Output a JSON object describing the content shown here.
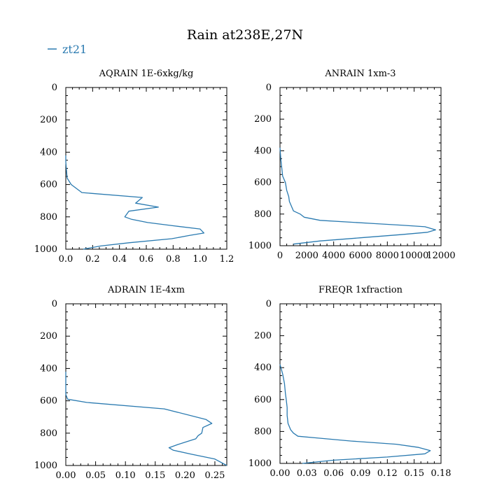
{
  "title": "Rain at238E,27N",
  "legend": {
    "label": "zt21",
    "color": "#2a7ab0"
  },
  "line_color": "#2a7ab0",
  "chart_data": [
    {
      "type": "line",
      "title": "AQRAIN  1E-6xkg/kg",
      "xlim": [
        0,
        1.2
      ],
      "ylim": [
        1000,
        0
      ],
      "xticks": [
        "0.0",
        "0.2",
        "0.4",
        "0.6",
        "0.8",
        "1.0",
        "1.2"
      ],
      "xtick_values": [
        0,
        0.2,
        0.4,
        0.6,
        0.8,
        1.0,
        1.2
      ],
      "yticks": [
        "0",
        "200",
        "400",
        "600",
        "800",
        "1000"
      ],
      "ytick_values": [
        0,
        200,
        400,
        600,
        800,
        1000
      ],
      "series": [
        {
          "name": "zt21",
          "x": [
            0,
            0,
            0.01,
            0.04,
            0.12,
            0.57,
            0.52,
            0.69,
            0.47,
            0.44,
            0.49,
            0.61,
            0.8,
            1.0,
            1.03,
            0.92,
            0.79,
            0.47,
            0.26,
            0.13
          ],
          "y": [
            420,
            460,
            560,
            600,
            650,
            680,
            715,
            740,
            765,
            800,
            815,
            835,
            855,
            875,
            900,
            915,
            935,
            960,
            980,
            1000
          ]
        }
      ]
    },
    {
      "type": "line",
      "title": "ANRAIN  1xm-3",
      "xlim": [
        0,
        12000
      ],
      "ylim": [
        1000,
        0
      ],
      "xticks": [
        "0",
        "2000",
        "4000",
        "6000",
        "8000",
        "10000",
        "12000"
      ],
      "xtick_values": [
        0,
        2000,
        4000,
        6000,
        8000,
        10000,
        12000
      ],
      "yticks": [
        "0",
        "200",
        "400",
        "600",
        "800",
        "1000"
      ],
      "ytick_values": [
        0,
        200,
        400,
        600,
        800,
        1000
      ],
      "series": [
        {
          "name": "zt21",
          "x": [
            0,
            60,
            200,
            400,
            500,
            650,
            700,
            1000,
            1500,
            1800,
            3000,
            7000,
            9000,
            10800,
            11600,
            11000,
            9000,
            6000,
            3000,
            1000
          ],
          "y": [
            380,
            450,
            560,
            600,
            650,
            690,
            720,
            780,
            800,
            820,
            840,
            860,
            870,
            880,
            900,
            915,
            930,
            950,
            970,
            990
          ]
        }
      ]
    },
    {
      "type": "line",
      "title": "ADRAIN  1E-4xm",
      "xlim": [
        0,
        0.27
      ],
      "ylim": [
        1000,
        0
      ],
      "xticks": [
        "0.00",
        "0.05",
        "0.10",
        "0.15",
        "0.20",
        "0.25"
      ],
      "xtick_values": [
        0,
        0.05,
        0.1,
        0.15,
        0.2,
        0.25
      ],
      "yticks": [
        "0",
        "200",
        "400",
        "600",
        "800",
        "1000"
      ],
      "ytick_values": [
        0,
        200,
        400,
        600,
        800,
        1000
      ],
      "series": [
        {
          "name": "zt21",
          "x": [
            0,
            0,
            0.0,
            0.003,
            0.035,
            0.165,
            0.235,
            0.245,
            0.23,
            0.228,
            0.222,
            0.218,
            0.205,
            0.188,
            0.173,
            0.18,
            0.21,
            0.25,
            0.275
          ],
          "y": [
            420,
            470,
            560,
            590,
            610,
            650,
            715,
            740,
            765,
            800,
            815,
            835,
            850,
            870,
            890,
            905,
            930,
            960,
            1000
          ]
        }
      ]
    },
    {
      "type": "line",
      "title": "FREQR  1xfraction",
      "xlim": [
        0,
        0.18
      ],
      "ylim": [
        1000,
        0
      ],
      "xticks": [
        "0.00",
        "0.03",
        "0.06",
        "0.09",
        "0.12",
        "0.15",
        "0.18"
      ],
      "xtick_values": [
        0,
        0.03,
        0.06,
        0.09,
        0.12,
        0.15,
        0.18
      ],
      "yticks": [
        "0",
        "200",
        "400",
        "600",
        "800",
        "1000"
      ],
      "ytick_values": [
        0,
        200,
        400,
        600,
        800,
        1000
      ],
      "series": [
        {
          "name": "zt21",
          "x": [
            0,
            0.003,
            0.005,
            0.006,
            0.007,
            0.008,
            0.008,
            0.009,
            0.012,
            0.015,
            0.02,
            0.04,
            0.08,
            0.13,
            0.155,
            0.168,
            0.162,
            0.12,
            0.06,
            0.025
          ],
          "y": [
            380,
            440,
            500,
            560,
            600,
            650,
            700,
            750,
            790,
            810,
            830,
            840,
            860,
            880,
            900,
            920,
            940,
            960,
            980,
            1000
          ]
        }
      ]
    }
  ]
}
